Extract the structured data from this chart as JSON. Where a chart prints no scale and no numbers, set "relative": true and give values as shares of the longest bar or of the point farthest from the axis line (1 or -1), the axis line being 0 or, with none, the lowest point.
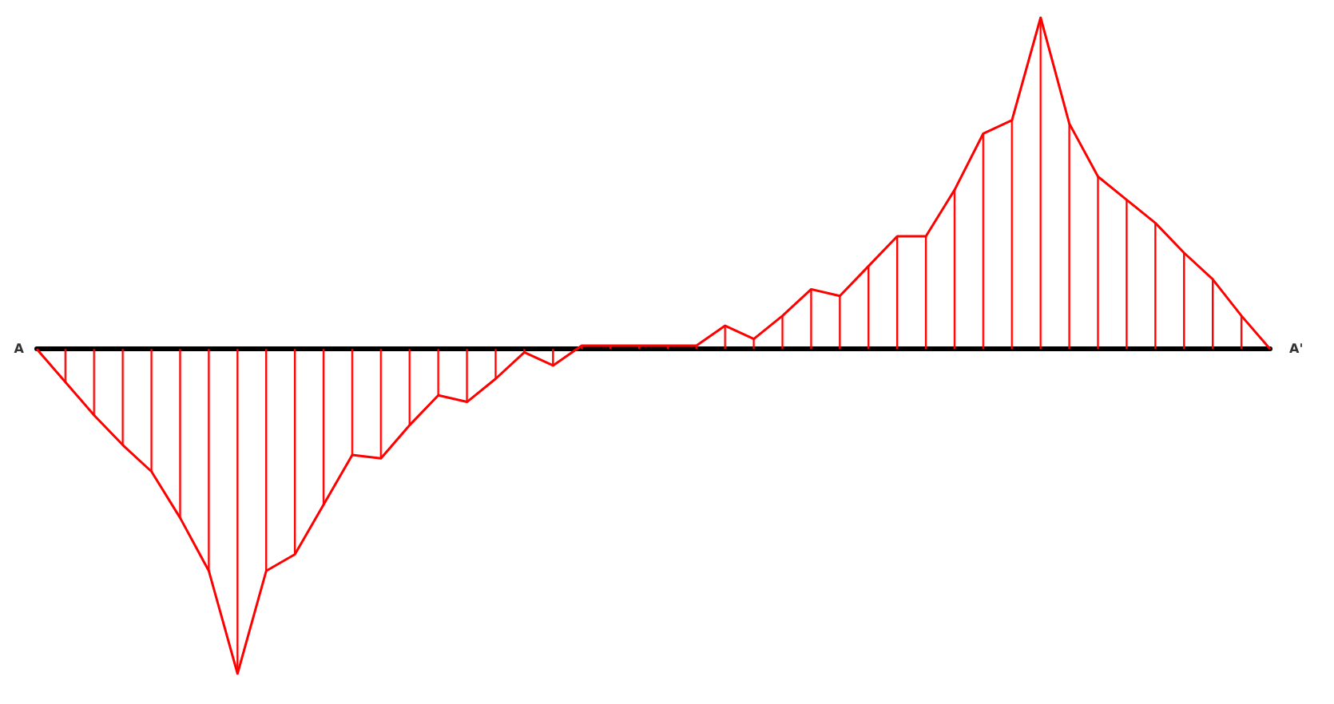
{
  "chart_data": {
    "type": "area",
    "relative": true,
    "tick_labels": false,
    "marker": "none",
    "annotations": [
      "A",
      "A'"
    ],
    "categories": [
      null,
      null,
      null,
      null,
      null,
      null,
      null,
      null,
      null,
      null,
      null,
      null,
      null,
      null,
      null,
      null,
      null,
      null,
      null,
      null,
      null,
      null,
      null,
      null,
      null,
      null,
      null,
      null,
      null,
      null,
      null,
      null,
      null,
      null,
      null,
      null,
      null,
      null,
      null,
      null,
      null,
      null,
      null,
      null
    ],
    "series": [
      {
        "color": "#ff0000",
        "values": [
          0,
          -0.1,
          -0.2,
          -0.29,
          -0.37,
          -0.51,
          -0.67,
          -0.98,
          -0.67,
          -0.62,
          -0.47,
          -0.32,
          -0.33,
          -0.23,
          -0.14,
          -0.16,
          -0.09,
          -0.01,
          -0.05,
          0.01,
          0.01,
          0.01,
          0.01,
          0.01,
          0.07,
          0.03,
          0.1,
          0.18,
          0.16,
          0.25,
          0.34,
          0.34,
          0.48,
          0.65,
          0.69,
          1,
          0.68,
          0.52,
          0.45,
          0.38,
          0.29,
          0.21,
          0.1,
          0
        ]
      }
    ]
  }
}
